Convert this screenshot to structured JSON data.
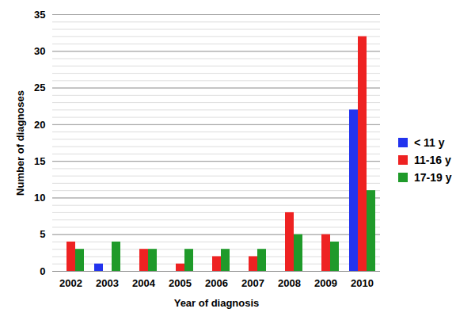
{
  "chart_data": {
    "type": "bar",
    "x_label": "Year of diagnosis",
    "y_label": "Number of diagnoses",
    "categories": [
      "2002",
      "2003",
      "2004",
      "2005",
      "2006",
      "2007",
      "2008",
      "2009",
      "2010"
    ],
    "series": [
      {
        "name": "< 11 y",
        "color": "#2233ee",
        "values": [
          0,
          1,
          0,
          0,
          0,
          0,
          0,
          0,
          22
        ]
      },
      {
        "name": "11-16 y",
        "color": "#ee2222",
        "values": [
          4,
          0,
          3,
          1,
          2,
          2,
          8,
          5,
          32
        ]
      },
      {
        "name": "17-19 y",
        "color": "#1f9a2a",
        "values": [
          3,
          4,
          3,
          3,
          3,
          3,
          5,
          4,
          11
        ]
      }
    ],
    "ylim": [
      0,
      35
    ],
    "yticks": [
      0,
      5,
      10,
      15,
      20,
      25,
      30,
      35
    ],
    "grid": true,
    "legend": "right"
  }
}
